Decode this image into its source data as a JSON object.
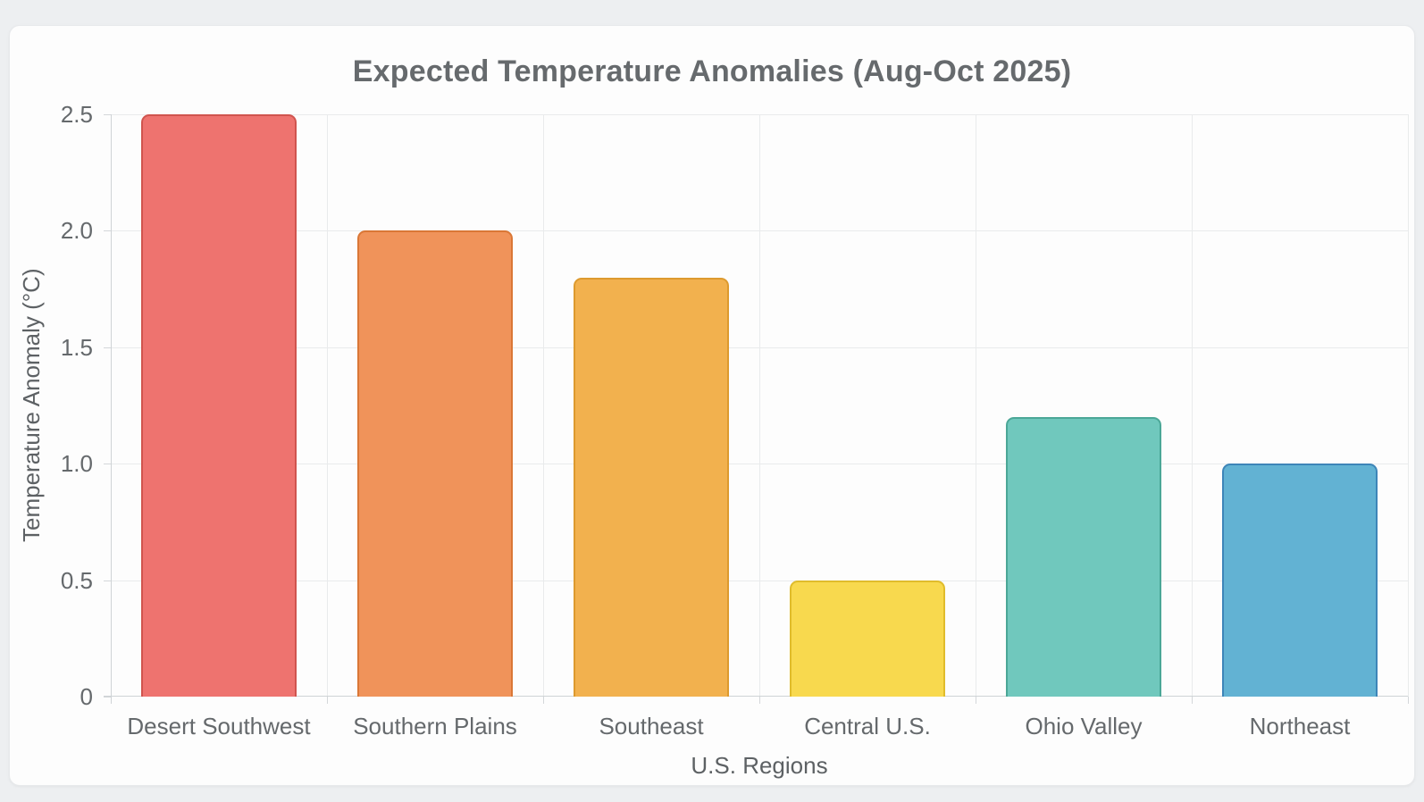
{
  "page": {
    "background_color": "#edeff1",
    "card_color": "#fdfdfd"
  },
  "chart_data": {
    "type": "bar",
    "title": "Expected Temperature Anomalies (Aug-Oct 2025)",
    "xlabel": "U.S. Regions",
    "ylabel": "Temperature Anomaly (°C)",
    "categories": [
      "Desert Southwest",
      "Southern Plains",
      "Southeast",
      "Central U.S.",
      "Ohio Valley",
      "Northeast"
    ],
    "values": [
      2.5,
      2.0,
      1.8,
      0.5,
      1.2,
      1.0
    ],
    "bar_colors": [
      "#ee736f",
      "#f0935a",
      "#f2b14e",
      "#f8d94e",
      "#70c8bd",
      "#62b2d3"
    ],
    "bar_border_colors": [
      "#d0544e",
      "#da7736",
      "#dd9a2e",
      "#e0bc2b",
      "#4ba797",
      "#3d85b8"
    ],
    "ylim": [
      0,
      2.5
    ],
    "y_ticks": [
      {
        "value": 0,
        "label": "0"
      },
      {
        "value": 0.5,
        "label": "0.5"
      },
      {
        "value": 1,
        "label": "1.0"
      },
      {
        "value": 1.5,
        "label": "1.5"
      },
      {
        "value": 2,
        "label": "2.0"
      },
      {
        "value": 2.5,
        "label": "2.5"
      }
    ],
    "grid": true,
    "legend_position": "none",
    "bar_corner_radius": "rounded-top"
  }
}
